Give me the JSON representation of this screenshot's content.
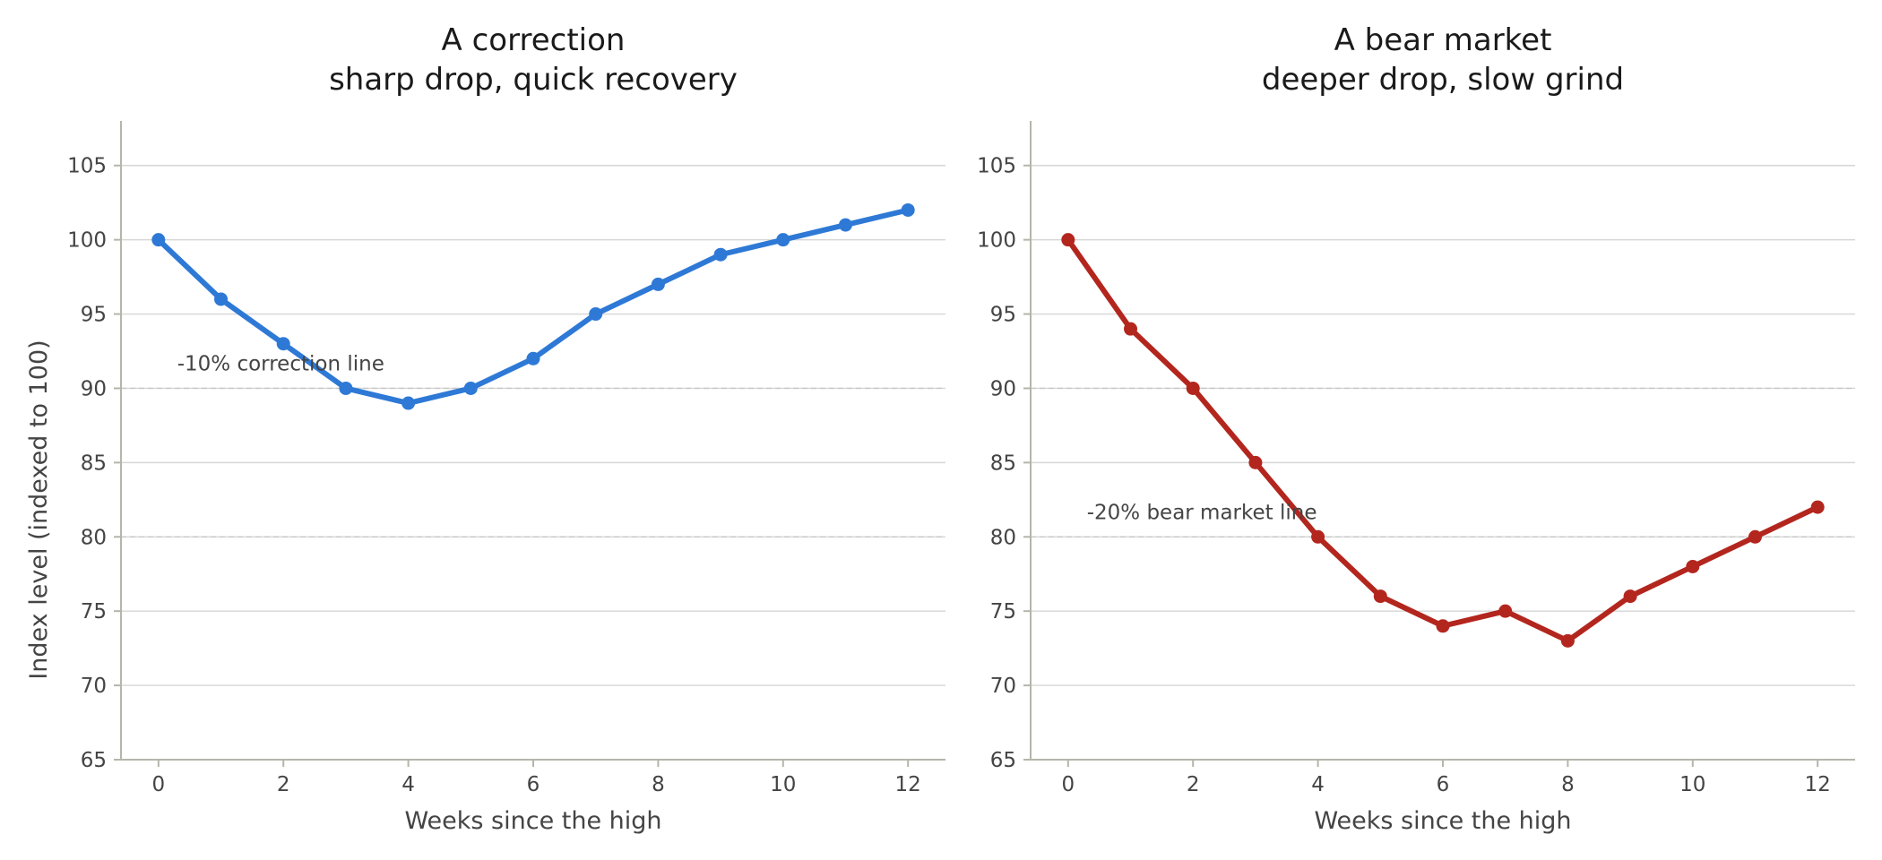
{
  "chart_data": [
    {
      "type": "line",
      "title_line1": "A correction",
      "title_line2": "sharp drop, quick recovery",
      "xlabel": "Weeks since the high",
      "ylabel": "Index level (indexed to 100)",
      "xlim": [
        -0.6,
        12.6
      ],
      "ylim": [
        65,
        108
      ],
      "x_ticks": [
        0,
        2,
        4,
        6,
        8,
        10,
        12
      ],
      "y_ticks": [
        65,
        70,
        75,
        80,
        85,
        90,
        95,
        100,
        105
      ],
      "grid": true,
      "series": [
        {
          "x": [
            0,
            1,
            2,
            3,
            4,
            5,
            6,
            7,
            8,
            9,
            10,
            11,
            12
          ],
          "values": [
            100,
            96,
            93,
            90,
            89,
            90,
            92,
            95,
            97,
            99,
            100,
            101,
            102
          ],
          "color": "#2e79d6"
        }
      ],
      "reference_lines": [
        90,
        80
      ],
      "annotation": {
        "text": "-10% correction line",
        "x": 0.3,
        "y": 91.2
      }
    },
    {
      "type": "line",
      "title_line1": "A bear market",
      "title_line2": "deeper drop, slow grind",
      "xlabel": "Weeks since the high",
      "ylabel": "",
      "xlim": [
        -0.6,
        12.6
      ],
      "ylim": [
        65,
        108
      ],
      "x_ticks": [
        0,
        2,
        4,
        6,
        8,
        10,
        12
      ],
      "y_ticks": [
        65,
        70,
        75,
        80,
        85,
        90,
        95,
        100,
        105
      ],
      "grid": true,
      "series": [
        {
          "x": [
            0,
            1,
            2,
            3,
            4,
            5,
            6,
            7,
            8,
            9,
            10,
            11,
            12
          ],
          "values": [
            100,
            94,
            90,
            85,
            80,
            76,
            74,
            75,
            73,
            76,
            78,
            80,
            82
          ],
          "color": "#b3261e"
        }
      ],
      "reference_lines": [
        90,
        80
      ],
      "annotation": {
        "text": "-20% bear market line",
        "x": 0.3,
        "y": 81.2
      }
    }
  ]
}
